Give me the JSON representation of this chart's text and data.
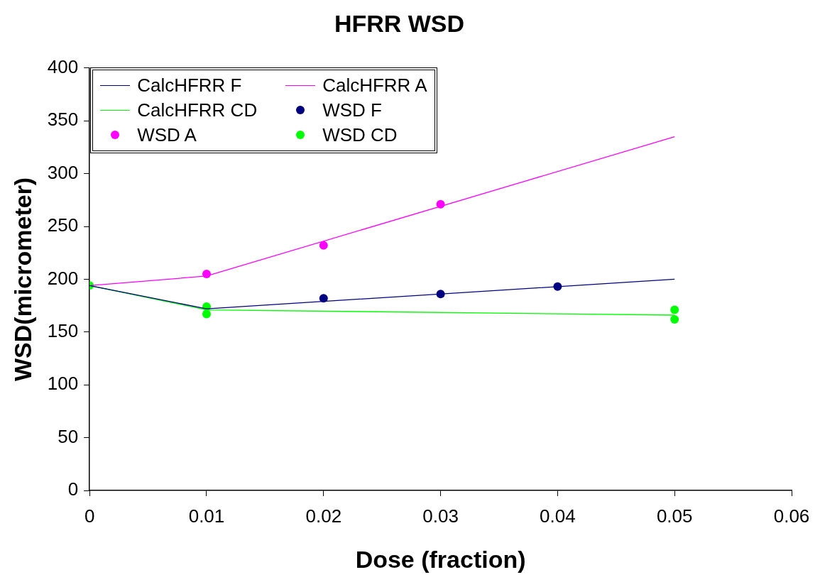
{
  "chart_data": {
    "type": "line",
    "title": "HFRR WSD",
    "xlabel": "Dose (fraction)",
    "ylabel": "WSD(micrometer)",
    "xlim": [
      0,
      0.06
    ],
    "xticks": [
      0,
      0.01,
      0.02,
      0.03,
      0.04,
      0.05,
      0.06
    ],
    "ylim": [
      0,
      400
    ],
    "yticks": [
      0,
      50,
      100,
      150,
      200,
      250,
      300,
      350,
      400
    ],
    "grid": false,
    "legend": "top left",
    "series": [
      {
        "name": "CalcHFRR F",
        "color": "#000080",
        "marker": "none",
        "x": [
          0,
          0.01,
          0.05
        ],
        "values": [
          194,
          172,
          200
        ]
      },
      {
        "name": "CalcHFRR A",
        "color": "#ff00ff",
        "marker": "none",
        "x": [
          0,
          0.01,
          0.05
        ],
        "values": [
          194,
          203,
          335
        ]
      },
      {
        "name": "CalcHFRR CD",
        "color": "#00ff00",
        "marker": "none",
        "x": [
          0,
          0.01,
          0.05
        ],
        "values": [
          194,
          171,
          166
        ]
      },
      {
        "name": "WSD F",
        "type": "scatter",
        "color": "#000080",
        "marker": "circle",
        "x": [
          0.02,
          0.03,
          0.04
        ],
        "values": [
          182,
          186,
          193
        ]
      },
      {
        "name": "WSD A",
        "type": "scatter",
        "color": "#ff00ff",
        "marker": "circle",
        "x": [
          0.01,
          0.02,
          0.03
        ],
        "values": [
          205,
          232,
          271
        ]
      },
      {
        "name": "WSD CD",
        "type": "scatter",
        "color": "#00ff00",
        "marker": "circle",
        "x": [
          0,
          0.01,
          0.01,
          0.05,
          0.05
        ],
        "values": [
          194,
          174,
          167,
          171,
          162
        ]
      }
    ]
  }
}
